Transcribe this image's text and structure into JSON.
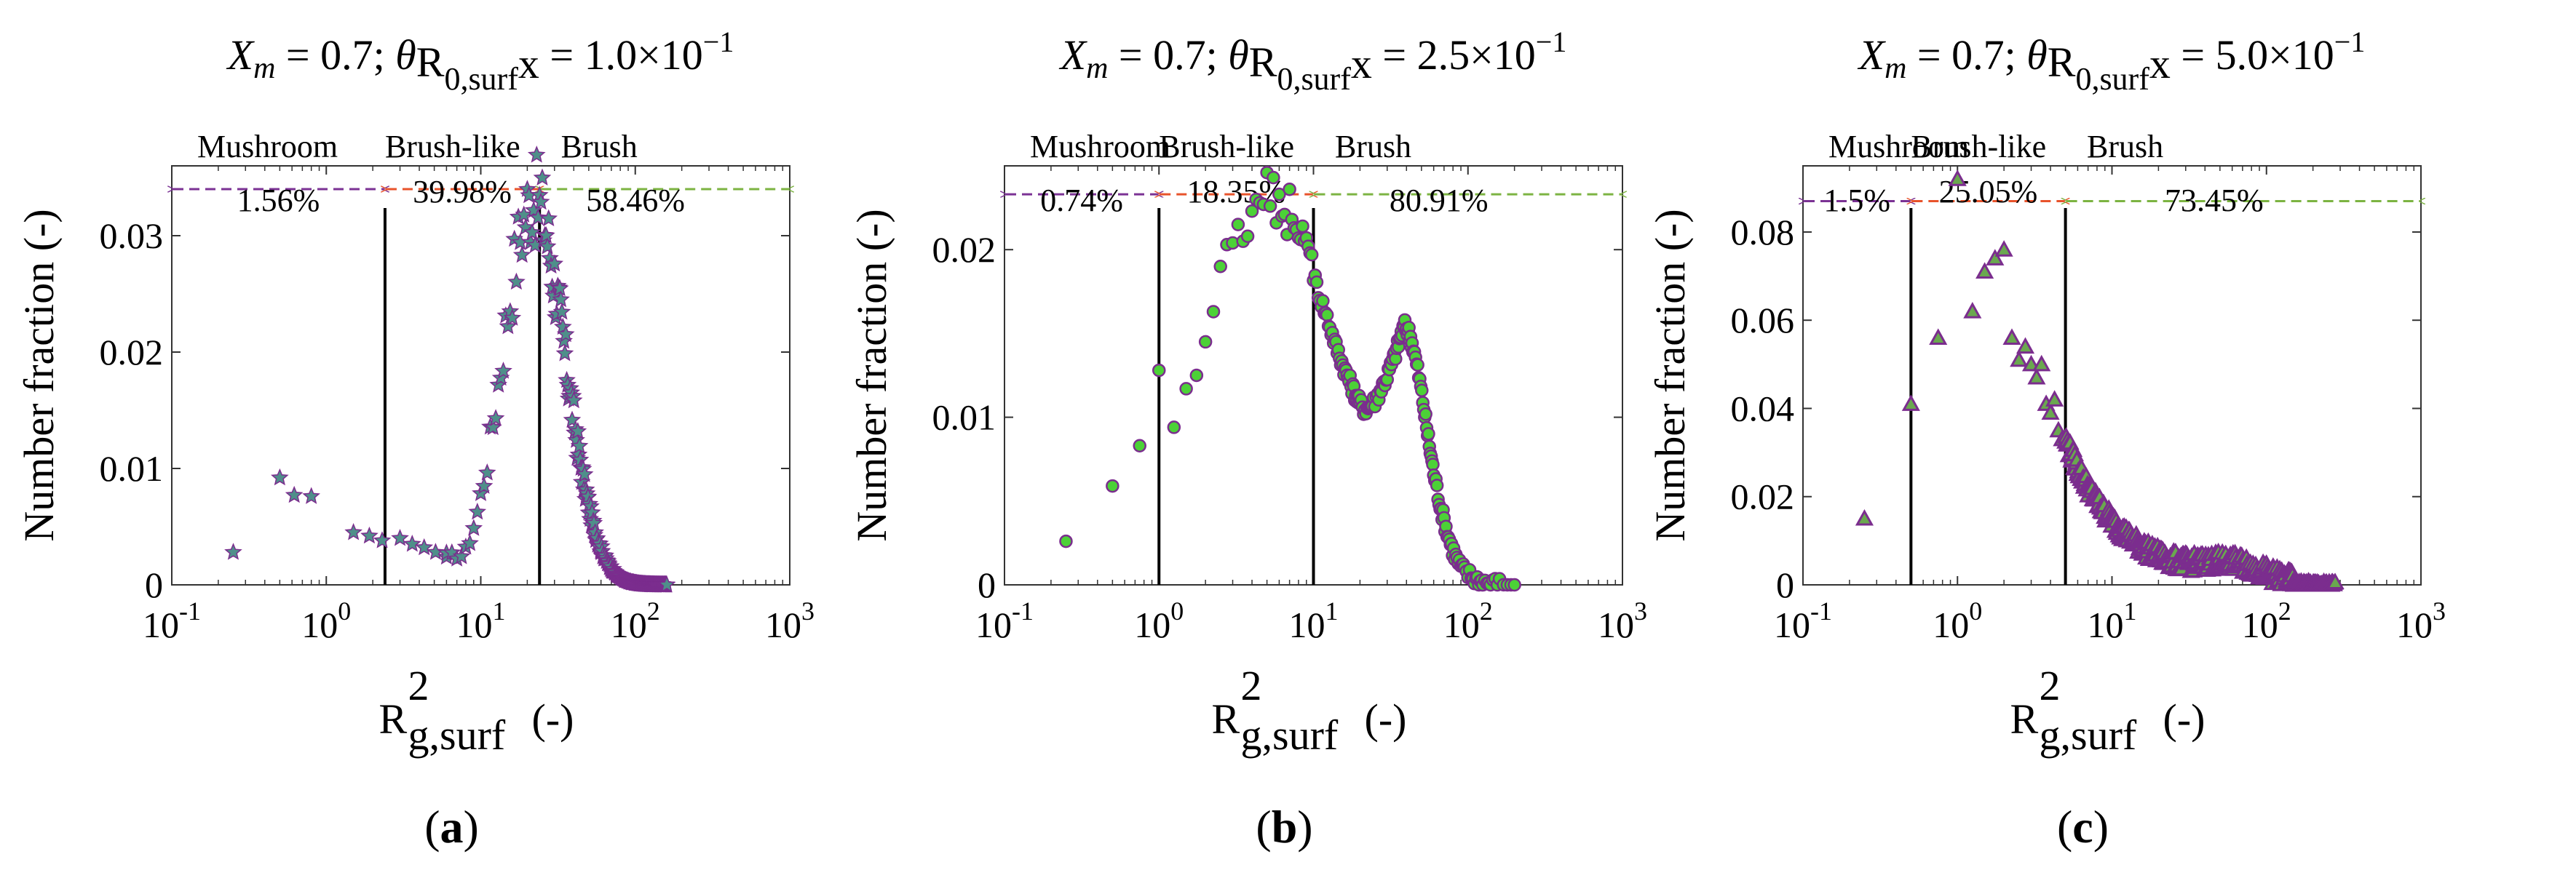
{
  "figure": {
    "layout": "three panels, side by side"
  },
  "colors": {
    "mushroom_arrow": "#7b3294",
    "brushlike_arrow": "#e8532b",
    "brush_arrow": "#7cb342",
    "divider": "#000000",
    "marker_purple": "#7b2d8e",
    "marker_green": "#4cd137",
    "marker_teal": "#4f8f8a",
    "axis": "#333333"
  },
  "chart_data": [
    {
      "id": "a",
      "type": "scatter",
      "marker": "star",
      "title": "X_m = 0.7; θ R_0,surf x = 1.0×10^-1",
      "title_parts": {
        "xm": "X",
        "xm_sub": "m",
        "xm_val": " = 0.7; ",
        "theta": "θ",
        "r": "R",
        "r_sub": "0,surf",
        "x": "x",
        "value": " = 1.0×10",
        "exp": "−1"
      },
      "xlabel": "R",
      "xlabel_sup": "2",
      "xlabel_sub": "g,surf",
      "xlabel_unit": "(-)",
      "ylabel": "Number fraction (-)",
      "xscale": "log",
      "xlim": [
        0.1,
        1000
      ],
      "ylim": [
        0,
        0.036
      ],
      "xticks": [
        0.1,
        1,
        10,
        100,
        1000
      ],
      "xtick_base": "10",
      "xtick_exps": [
        "-1",
        "0",
        "1",
        "2",
        "3"
      ],
      "yticks": [
        0,
        0.01,
        0.02,
        0.03
      ],
      "ytick_labels": [
        "0",
        "0.01",
        "0.02",
        "0.03"
      ],
      "boundaries": [
        2.4,
        24
      ],
      "arrow_y": 0.034,
      "regions": [
        {
          "name": "Mushroom",
          "percent": "1.56%"
        },
        {
          "name": "Brush-like",
          "percent": "39.98%"
        },
        {
          "name": "Brush",
          "percent": "58.46%"
        }
      ],
      "label": "(a)",
      "peak": {
        "mode": "gaussian",
        "peak_x": 22,
        "sigma_log": 0.2,
        "amp": 0.033
      },
      "background_points": [
        [
          0.25,
          0.0028
        ],
        [
          0.5,
          0.0092
        ],
        [
          0.62,
          0.0077
        ],
        [
          0.8,
          0.0076
        ],
        [
          1.5,
          0.0045
        ],
        [
          1.9,
          0.0042
        ],
        [
          2.3,
          0.0038
        ],
        [
          3.0,
          0.004
        ],
        [
          3.6,
          0.0035
        ],
        [
          4.3,
          0.0032
        ],
        [
          5.1,
          0.0028
        ],
        [
          6.0,
          0.0024
        ]
      ],
      "tail": {
        "from": 30,
        "to": 160
      }
    },
    {
      "id": "b",
      "type": "scatter",
      "marker": "circle",
      "title": "X_m = 0.7; θ R_0,surf x = 2.5×10^-1",
      "title_parts": {
        "xm": "X",
        "xm_sub": "m",
        "xm_val": " = 0.7; ",
        "theta": "θ",
        "r": "R",
        "r_sub": "0,surf",
        "x": "x",
        "value": " = 2.5×10",
        "exp": "−1"
      },
      "xlabel": "R",
      "xlabel_sup": "2",
      "xlabel_sub": "g,surf",
      "xlabel_unit": "(-)",
      "ylabel": "Number fraction (-)",
      "xscale": "log",
      "xlim": [
        0.1,
        1000
      ],
      "ylim": [
        0,
        0.025
      ],
      "xticks": [
        0.1,
        1,
        10,
        100,
        1000
      ],
      "xtick_base": "10",
      "xtick_exps": [
        "-1",
        "0",
        "1",
        "2",
        "3"
      ],
      "yticks": [
        0,
        0.01,
        0.02
      ],
      "ytick_labels": [
        "0",
        "0.01",
        "0.02"
      ],
      "boundaries": [
        1.0,
        10
      ],
      "arrow_y": 0.0233,
      "regions": [
        {
          "name": "Mushroom",
          "percent": "0.74%"
        },
        {
          "name": "Brush-like",
          "percent": "18.35%"
        },
        {
          "name": "Brush",
          "percent": "80.91%"
        }
      ],
      "label": "(b)",
      "points": [
        [
          0.25,
          0.0026
        ],
        [
          0.5,
          0.0059
        ],
        [
          0.75,
          0.0083
        ],
        [
          1.0,
          0.0128
        ],
        [
          1.25,
          0.0094
        ],
        [
          1.5,
          0.0117
        ],
        [
          1.75,
          0.0125
        ],
        [
          2.0,
          0.0145
        ],
        [
          2.25,
          0.0163
        ],
        [
          2.5,
          0.019
        ],
        [
          2.75,
          0.0203
        ],
        [
          3.0,
          0.0204
        ],
        [
          3.25,
          0.0215
        ],
        [
          3.5,
          0.0205
        ],
        [
          3.75,
          0.0208
        ],
        [
          4.0,
          0.0223
        ],
        [
          4.25,
          0.023
        ],
        [
          4.5,
          0.0228
        ],
        [
          4.75,
          0.0227
        ],
        [
          5.0,
          0.0246
        ],
        [
          5.25,
          0.0226
        ],
        [
          5.5,
          0.0243
        ],
        [
          5.75,
          0.0216
        ],
        [
          6.0,
          0.0233
        ],
        [
          6.25,
          0.022
        ],
        [
          6.5,
          0.0221
        ],
        [
          6.75,
          0.0209
        ],
        [
          7.0,
          0.0236
        ],
        [
          7.25,
          0.0218
        ],
        [
          7.5,
          0.0213
        ],
        [
          7.75,
          0.0212
        ],
        [
          8.0,
          0.0207
        ],
        [
          8.25,
          0.0206
        ],
        [
          8.5,
          0.0214
        ],
        [
          8.75,
          0.0205
        ],
        [
          9.0,
          0.0207
        ],
        [
          9.25,
          0.0202
        ],
        [
          9.5,
          0.0198
        ],
        [
          9.75,
          0.0197
        ]
      ],
      "curve": [
        [
          10,
          0.0185
        ],
        [
          11,
          0.0172
        ],
        [
          12,
          0.0162
        ],
        [
          13,
          0.0152
        ],
        [
          14,
          0.0142
        ],
        [
          15,
          0.0135
        ],
        [
          16,
          0.0128
        ],
        [
          17,
          0.0122
        ],
        [
          18,
          0.0117
        ],
        [
          19,
          0.0112
        ],
        [
          20,
          0.0108
        ],
        [
          21.5,
          0.0105
        ],
        [
          23,
          0.0106
        ],
        [
          25,
          0.011
        ],
        [
          27,
          0.0116
        ],
        [
          29,
          0.0122
        ],
        [
          31,
          0.0128
        ],
        [
          33,
          0.0135
        ],
        [
          35,
          0.0142
        ],
        [
          37,
          0.015
        ],
        [
          39,
          0.0154
        ],
        [
          41,
          0.0152
        ],
        [
          43,
          0.0146
        ],
        [
          45,
          0.0138
        ],
        [
          48,
          0.0125
        ],
        [
          51,
          0.011
        ],
        [
          54,
          0.0094
        ],
        [
          57,
          0.008
        ],
        [
          60,
          0.0067
        ],
        [
          64,
          0.0054
        ],
        [
          68,
          0.0043
        ],
        [
          72,
          0.0034
        ],
        [
          77,
          0.0025
        ],
        [
          82,
          0.0018
        ],
        [
          88,
          0.0012
        ],
        [
          95,
          0.0008
        ],
        [
          105,
          0.0005
        ],
        [
          115,
          0.0003
        ],
        [
          125,
          0.0002
        ],
        [
          140,
          0.0001
        ],
        [
          160,
          5e-05
        ],
        [
          200,
          0.0
        ]
      ]
    },
    {
      "id": "c",
      "type": "scatter",
      "marker": "triangle",
      "title": "X_m = 0.7; θ R_0,surf x = 5.0×10^-1",
      "title_parts": {
        "xm": "X",
        "xm_sub": "m",
        "xm_val": " = 0.7; ",
        "theta": "θ",
        "r": "R",
        "r_sub": "0,surf",
        "x": "x",
        "value": " = 5.0×10",
        "exp": "−1"
      },
      "xlabel": "R",
      "xlabel_sup": "2",
      "xlabel_sub": "g,surf",
      "xlabel_unit": "(-)",
      "ylabel": "Number fraction (-)",
      "xscale": "log",
      "xlim": [
        0.1,
        1000
      ],
      "ylim": [
        0,
        0.095
      ],
      "xticks": [
        0.1,
        1,
        10,
        100,
        1000
      ],
      "xtick_base": "10",
      "xtick_exps": [
        "-1",
        "0",
        "1",
        "2",
        "3"
      ],
      "yticks": [
        0,
        0.02,
        0.04,
        0.06,
        0.08
      ],
      "ytick_labels": [
        "0",
        "0.02",
        "0.04",
        "0.06",
        "0.08"
      ],
      "boundaries": [
        0.5,
        5
      ],
      "arrow_y": 0.087,
      "regions": [
        {
          "name": "Mushroom",
          "percent": "1.5%"
        },
        {
          "name": "Brush-like",
          "percent": "25.05%"
        },
        {
          "name": "Brush",
          "percent": "73.45%"
        }
      ],
      "label": "(c)",
      "points": [
        [
          0.25,
          0.015
        ],
        [
          0.5,
          0.041
        ],
        [
          0.75,
          0.056
        ],
        [
          1.0,
          0.092
        ],
        [
          1.25,
          0.062
        ],
        [
          1.5,
          0.071
        ],
        [
          1.75,
          0.074
        ],
        [
          2.0,
          0.076
        ],
        [
          2.25,
          0.056
        ],
        [
          2.5,
          0.051
        ],
        [
          2.75,
          0.054
        ],
        [
          3.0,
          0.05
        ],
        [
          3.25,
          0.047
        ],
        [
          3.5,
          0.05
        ],
        [
          3.75,
          0.041
        ],
        [
          4.0,
          0.039
        ],
        [
          4.25,
          0.042
        ],
        [
          4.5,
          0.035
        ],
        [
          4.75,
          0.033
        ]
      ],
      "tail": {
        "from": 5,
        "to": 280
      }
    }
  ]
}
